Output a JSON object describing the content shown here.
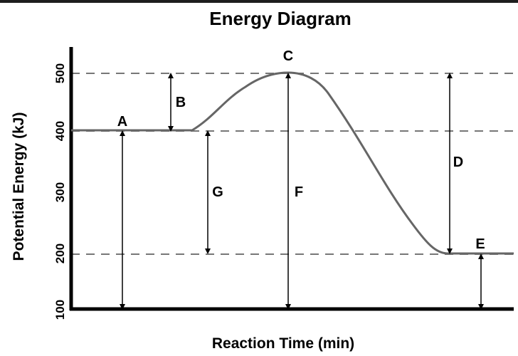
{
  "title": "Energy Diagram",
  "x_axis_label": "Reaction Time (min)",
  "y_axis_label": "Potential Energy (kJ)",
  "y_ticks": [
    "100",
    "200",
    "300",
    "400",
    "500"
  ],
  "reference_lines": [
    "200",
    "400",
    "500"
  ],
  "labels": {
    "A": "A",
    "B": "B",
    "C": "C",
    "D": "D",
    "E": "E",
    "F": "F",
    "G": "G"
  },
  "colors": {
    "curve": "#666666",
    "axis": "#000000",
    "dashed": "#777777"
  }
}
